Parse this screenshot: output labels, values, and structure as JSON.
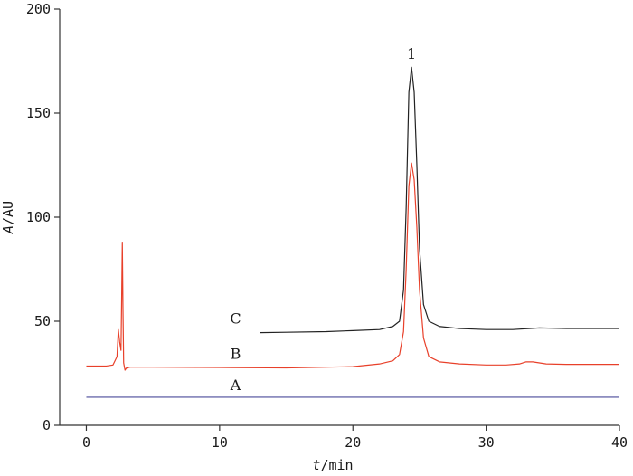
{
  "chart_data": {
    "type": "line",
    "xlabel_italic": "t",
    "xlabel_unit": "/min",
    "ylabel_italic": "A",
    "ylabel_unit": "/AU",
    "xlim": [
      -2,
      40
    ],
    "ylim": [
      0,
      200
    ],
    "x_ticks": [
      0,
      10,
      20,
      30,
      40
    ],
    "y_ticks": [
      0,
      50,
      100,
      150,
      200
    ],
    "grid": false,
    "legend": "none",
    "series": [
      {
        "name": "A",
        "color": "#4b4b9a",
        "x": [
          0,
          40
        ],
        "y": [
          13.5,
          13.5
        ]
      },
      {
        "name": "B",
        "color": "#e8402a",
        "x": [
          0,
          1.5,
          2.0,
          2.3,
          2.4,
          2.5,
          2.6,
          2.65,
          2.7,
          2.75,
          2.8,
          2.9,
          3.0,
          3.3,
          5,
          10,
          15,
          20,
          22,
          23,
          23.5,
          23.8,
          24.0,
          24.2,
          24.4,
          24.6,
          24.8,
          25.0,
          25.3,
          25.7,
          26.5,
          28,
          30,
          31.5,
          32.5,
          33.0,
          33.5,
          34.5,
          36,
          40
        ],
        "y": [
          28.5,
          28.5,
          29,
          33,
          46,
          40,
          36,
          60,
          88,
          55,
          30,
          26.5,
          27.5,
          28,
          28,
          27.8,
          27.6,
          28.2,
          29.5,
          31,
          34,
          45,
          75,
          115,
          126,
          118,
          95,
          65,
          42,
          33,
          30.5,
          29.5,
          29,
          29,
          29.5,
          30.5,
          30.5,
          29.5,
          29.3,
          29.3
        ]
      },
      {
        "name": "C",
        "color": "#222222",
        "x": [
          13,
          15,
          18,
          20,
          22,
          23,
          23.5,
          23.8,
          24.0,
          24.2,
          24.4,
          24.6,
          24.8,
          25.0,
          25.3,
          25.7,
          26.5,
          28,
          30,
          32,
          34,
          36,
          40
        ],
        "y": [
          44.5,
          44.7,
          45,
          45.5,
          46,
          47.5,
          50,
          65,
          105,
          160,
          172,
          160,
          125,
          85,
          58,
          50,
          47.5,
          46.5,
          46,
          46,
          46.8,
          46.5,
          46.5
        ]
      }
    ],
    "annotations": [
      {
        "text": "1",
        "x": 24.4,
        "y": 176
      },
      {
        "text": "C",
        "x": 11.2,
        "y": 49
      },
      {
        "text": "B",
        "x": 11.2,
        "y": 32
      },
      {
        "text": "A",
        "x": 11.2,
        "y": 17
      }
    ]
  }
}
